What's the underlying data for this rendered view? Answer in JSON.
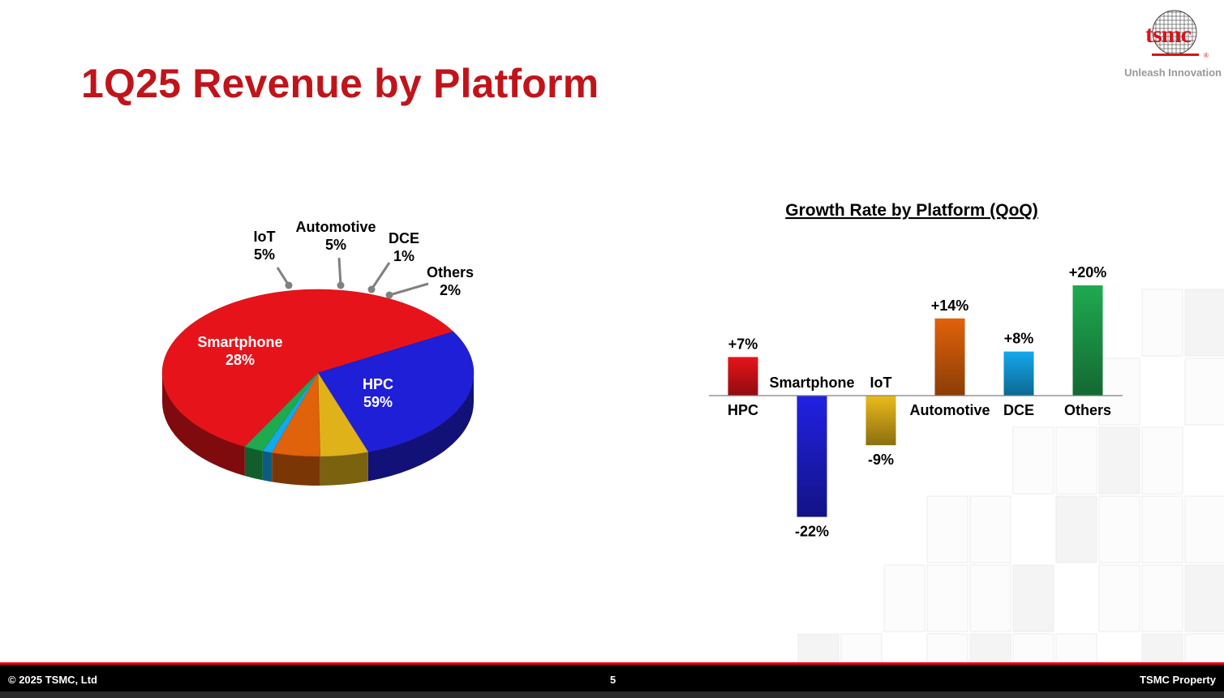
{
  "slide": {
    "title": "1Q25 Revenue by Platform",
    "tagline": "Unleash Innovation",
    "logo_text": "tsmc",
    "logo_reg": "®"
  },
  "footer": {
    "copyright": "© 2025 TSMC, Ltd",
    "page_number": "5",
    "property": "TSMC Property"
  },
  "colors": {
    "title": "#c0141b",
    "HPC": "#e6141a",
    "Smartphone": "#1f1fd8",
    "IoT": "#e0b21a",
    "Automotive": "#e0620a",
    "DCE": "#14a8ec",
    "Others": "#1faa50"
  },
  "chart_data": [
    {
      "type": "pie",
      "title": "",
      "slices": [
        {
          "name": "HPC",
          "value": 59,
          "label": "59%"
        },
        {
          "name": "Smartphone",
          "value": 28,
          "label": "28%"
        },
        {
          "name": "IoT",
          "value": 5,
          "label": "5%"
        },
        {
          "name": "Automotive",
          "value": 5,
          "label": "5%"
        },
        {
          "name": "DCE",
          "value": 1,
          "label": "1%"
        },
        {
          "name": "Others",
          "value": 2,
          "label": "2%"
        }
      ]
    },
    {
      "type": "bar",
      "title": "Growth Rate by Platform (QoQ)",
      "categories": [
        "HPC",
        "Smartphone",
        "IoT",
        "Automotive",
        "DCE",
        "Others"
      ],
      "values": [
        7,
        -22,
        -9,
        14,
        8,
        20
      ],
      "value_labels": [
        "+7%",
        "-22%",
        "-9%",
        "+14%",
        "+8%",
        "+20%"
      ],
      "xlabel": "",
      "ylabel": "",
      "grid": false
    }
  ]
}
